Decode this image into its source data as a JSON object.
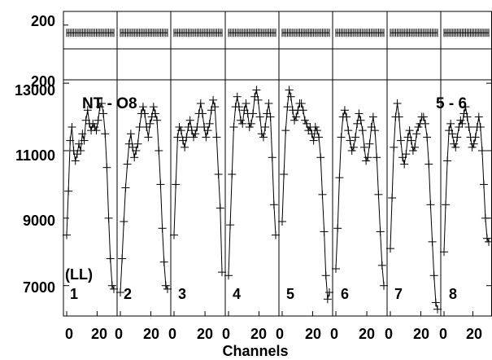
{
  "chart_data": {
    "type": "line",
    "annotation_left": "NT - O8",
    "annotation_right": "5 - 6",
    "label_ll": "(LL)",
    "xlabel": "Channels",
    "x_ticks": [
      "0",
      "20"
    ],
    "top_strip": {
      "y_tick": "200",
      "ylim": [
        0,
        250
      ],
      "level": 172
    },
    "main_y_ticks": [
      "13000",
      "11000",
      "9000",
      "7000"
    ],
    "ylim": [
      6100,
      13100
    ],
    "panel_labels": [
      "1",
      "2",
      "3",
      "4",
      "5",
      "6",
      "7",
      "8"
    ],
    "channels_per_panel": 32,
    "series": [
      {
        "values": [
          8500,
          9800,
          11300,
          11700,
          11000,
          10700,
          10900,
          11200,
          11000,
          11500,
          11300,
          11900,
          12200,
          11800,
          11600,
          11800,
          11700,
          11600,
          11900,
          12300,
          12400,
          12100,
          11500,
          10500,
          9000,
          7800,
          7000,
          6900
        ]
      },
      {
        "values": [
          6800,
          7800,
          8900,
          9900,
          10600,
          11200,
          11500,
          11100,
          10800,
          11000,
          11200,
          11700,
          12100,
          12300,
          12100,
          11700,
          11400,
          11800,
          12000,
          12300,
          12100,
          11900,
          11000,
          10000,
          8700,
          7700,
          7000,
          6900
        ]
      },
      {
        "values": [
          8500,
          10000,
          11400,
          11700,
          11600,
          11300,
          11100,
          11400,
          11700,
          11900,
          11600,
          11400,
          11500,
          11700,
          12100,
          12400,
          12100,
          11700,
          11400,
          11600,
          11800,
          12200,
          12500,
          12300,
          11400,
          10300,
          9300,
          7400
        ]
      },
      {
        "values": [
          7300,
          8800,
          10300,
          11700,
          12300,
          12600,
          12300,
          11900,
          11800,
          12200,
          12400,
          12100,
          11700,
          11800,
          12100,
          12600,
          12800,
          12500,
          12000,
          11500,
          11400,
          11700,
          12100,
          12400,
          12000,
          10800,
          9400,
          8500
        ]
      },
      {
        "values": [
          8900,
          10300,
          11600,
          12300,
          12800,
          12600,
          12200,
          11900,
          12000,
          12200,
          12400,
          12400,
          12200,
          11900,
          11800,
          11600,
          11700,
          11500,
          11300,
          11700,
          11600,
          11400,
          10800,
          9700,
          8600,
          7300,
          6600,
          6800
        ]
      },
      {
        "values": [
          7500,
          8700,
          10200,
          11400,
          12000,
          12200,
          12000,
          11600,
          11300,
          11000,
          11100,
          11400,
          11800,
          12100,
          11900,
          11600,
          11100,
          10700,
          10800,
          11200,
          11700,
          12000,
          11600,
          10800,
          9700,
          8600,
          7600,
          7000
        ]
      },
      {
        "values": [
          8100,
          9600,
          11100,
          12000,
          12400,
          12000,
          11300,
          10800,
          10600,
          10900,
          11400,
          11600,
          11300,
          11000,
          11100,
          11500,
          11700,
          11800,
          12000,
          12000,
          11800,
          11400,
          10600,
          9400,
          8300,
          7300,
          6500,
          6300
        ]
      },
      {
        "values": [
          8000,
          9400,
          10700,
          11600,
          11800,
          11500,
          11200,
          11100,
          11400,
          11700,
          11900,
          11800,
          12100,
          12300,
          12000,
          11700,
          11400,
          11100,
          11200,
          11400,
          11700,
          12000,
          11700,
          11000,
          10000,
          9000,
          8400,
          8300
        ]
      }
    ]
  }
}
